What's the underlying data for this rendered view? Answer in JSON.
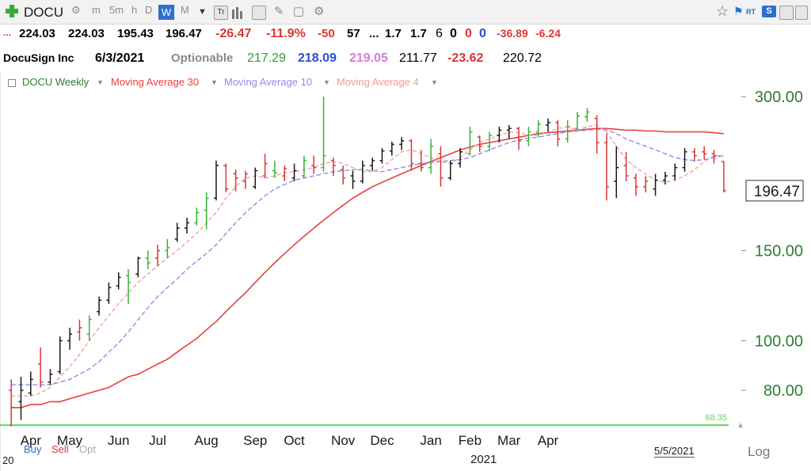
{
  "toolbar": {
    "symbol": "DOCU",
    "intervals": [
      "m",
      "5m",
      "h",
      "D",
      "W",
      "M"
    ],
    "active_interval": "W",
    "rt_label": "RT",
    "s_label": "S"
  },
  "quote": {
    "ellipsis": "...",
    "open": "224.03",
    "high": "224.03",
    "low": "195.43",
    "close": "196.47",
    "change": "-26.47",
    "change_pct": "-11.9%",
    "v1": "-50",
    "v2": "57",
    "v3": "...",
    "v4": "1.7",
    "v5": "1.7",
    "v6": "6",
    "v7": "0",
    "v8": "0",
    "v9": "0",
    "v10": "-36.89",
    "v11": "-6.24"
  },
  "info": {
    "company": "DocuSign Inc",
    "date": "6/3/2021",
    "optionable": "Optionable",
    "p1": "217.29",
    "p2": "218.09",
    "p3": "219.05",
    "p4": "211.77",
    "p5": "-23.62",
    "p6": "220.72"
  },
  "legend": {
    "items": [
      "DOCU Weekly",
      "Moving Average 30",
      "Moving Average 10",
      "Moving Average 4"
    ]
  },
  "footer": {
    "year_stub": "20",
    "buy": "Buy",
    "sell": "Sell",
    "opt": "Opt",
    "year": "2021",
    "marker_date": "5/5/2021",
    "scale": "Log"
  },
  "colors": {
    "up": "#38b238",
    "down": "#d93636",
    "neutral": "#1a1a1a",
    "ma30": "#e8413c",
    "ma10": "#8f8fe8",
    "ma4": "#f29a9a",
    "support": "#5cd65c",
    "axis_text": "#2e7d32"
  },
  "chart_data": {
    "type": "line",
    "title": "DOCU Weekly",
    "scale": "log",
    "ylim": [
      66,
      320
    ],
    "x_tick_labels": [
      "Apr",
      "May",
      "Jun",
      "Jul",
      "Aug",
      "Sep",
      "Oct",
      "Nov",
      "Dec",
      "Jan",
      "Feb",
      "Mar",
      "Apr"
    ],
    "x_tick_positions": [
      2,
      6,
      11,
      15,
      20,
      25,
      29,
      34,
      38,
      43,
      47,
      51,
      55
    ],
    "y_ticks": [
      80,
      100,
      150,
      300
    ],
    "y_tick_labels": [
      "80.00",
      "100.00",
      "150.00",
      "300.00"
    ],
    "current_price": 196.47,
    "current_price_label": "196.47",
    "support_level": 68.35,
    "support_label": "68.35",
    "bars": [
      {
        "o": 80,
        "h": 84,
        "l": 68,
        "c": 74,
        "t": "down"
      },
      {
        "o": 76,
        "h": 85,
        "l": 70,
        "c": 80,
        "t": "flat"
      },
      {
        "o": 79,
        "h": 87,
        "l": 78,
        "c": 84,
        "t": "flat"
      },
      {
        "o": 90,
        "h": 97,
        "l": 81,
        "c": 83,
        "t": "down"
      },
      {
        "o": 83,
        "h": 88,
        "l": 82,
        "c": 86,
        "t": "flat"
      },
      {
        "o": 87,
        "h": 102,
        "l": 86,
        "c": 100,
        "t": "flat"
      },
      {
        "o": 100,
        "h": 106,
        "l": 96,
        "c": 103,
        "t": "flat"
      },
      {
        "o": 104,
        "h": 110,
        "l": 100,
        "c": 106,
        "t": "down"
      },
      {
        "o": 103,
        "h": 112,
        "l": 100,
        "c": 110,
        "t": "up"
      },
      {
        "o": 114,
        "h": 122,
        "l": 112,
        "c": 120,
        "t": "flat"
      },
      {
        "o": 120,
        "h": 130,
        "l": 118,
        "c": 127,
        "t": "flat"
      },
      {
        "o": 128,
        "h": 136,
        "l": 126,
        "c": 133,
        "t": "flat"
      },
      {
        "o": 134,
        "h": 138,
        "l": 118,
        "c": 130,
        "t": "up"
      },
      {
        "o": 135,
        "h": 146,
        "l": 133,
        "c": 145,
        "t": "flat"
      },
      {
        "o": 145,
        "h": 150,
        "l": 138,
        "c": 142,
        "t": "up"
      },
      {
        "o": 145,
        "h": 154,
        "l": 140,
        "c": 150,
        "t": "down"
      },
      {
        "o": 150,
        "h": 158,
        "l": 145,
        "c": 152,
        "t": "up"
      },
      {
        "o": 158,
        "h": 170,
        "l": 156,
        "c": 166,
        "t": "flat"
      },
      {
        "o": 166,
        "h": 174,
        "l": 162,
        "c": 170,
        "t": "flat"
      },
      {
        "o": 170,
        "h": 182,
        "l": 168,
        "c": 178,
        "t": "up"
      },
      {
        "o": 180,
        "h": 195,
        "l": 165,
        "c": 190,
        "t": "up"
      },
      {
        "o": 190,
        "h": 225,
        "l": 188,
        "c": 220,
        "t": "flat"
      },
      {
        "o": 220,
        "h": 222,
        "l": 195,
        "c": 198,
        "t": "down"
      },
      {
        "o": 212,
        "h": 216,
        "l": 196,
        "c": 208,
        "t": "down"
      },
      {
        "o": 205,
        "h": 215,
        "l": 198,
        "c": 212,
        "t": "down"
      },
      {
        "o": 200,
        "h": 218,
        "l": 198,
        "c": 215,
        "t": "flat"
      },
      {
        "o": 210,
        "h": 232,
        "l": 208,
        "c": 222,
        "t": "down"
      },
      {
        "o": 215,
        "h": 225,
        "l": 208,
        "c": 213,
        "t": "up"
      },
      {
        "o": 210,
        "h": 220,
        "l": 205,
        "c": 217,
        "t": "down"
      },
      {
        "o": 208,
        "h": 222,
        "l": 205,
        "c": 215,
        "t": "flat"
      },
      {
        "o": 210,
        "h": 230,
        "l": 208,
        "c": 225,
        "t": "up"
      },
      {
        "o": 220,
        "h": 230,
        "l": 212,
        "c": 218,
        "t": "down"
      },
      {
        "o": 218,
        "h": 300,
        "l": 214,
        "c": 230,
        "t": "up"
      },
      {
        "o": 225,
        "h": 228,
        "l": 210,
        "c": 220,
        "t": "down"
      },
      {
        "o": 216,
        "h": 220,
        "l": 202,
        "c": 208,
        "t": "down"
      },
      {
        "o": 210,
        "h": 215,
        "l": 198,
        "c": 205,
        "t": "flat"
      },
      {
        "o": 205,
        "h": 225,
        "l": 203,
        "c": 220,
        "t": "flat"
      },
      {
        "o": 220,
        "h": 228,
        "l": 215,
        "c": 225,
        "t": "flat"
      },
      {
        "o": 225,
        "h": 238,
        "l": 222,
        "c": 235,
        "t": "flat"
      },
      {
        "o": 235,
        "h": 245,
        "l": 230,
        "c": 242,
        "t": "flat"
      },
      {
        "o": 242,
        "h": 250,
        "l": 236,
        "c": 246,
        "t": "flat"
      },
      {
        "o": 246,
        "h": 248,
        "l": 215,
        "c": 222,
        "t": "down"
      },
      {
        "o": 222,
        "h": 236,
        "l": 214,
        "c": 218,
        "t": "down"
      },
      {
        "o": 218,
        "h": 248,
        "l": 212,
        "c": 240,
        "t": "up"
      },
      {
        "o": 232,
        "h": 240,
        "l": 200,
        "c": 208,
        "t": "down"
      },
      {
        "o": 208,
        "h": 225,
        "l": 206,
        "c": 222,
        "t": "flat"
      },
      {
        "o": 222,
        "h": 238,
        "l": 218,
        "c": 234,
        "t": "flat"
      },
      {
        "o": 232,
        "h": 262,
        "l": 230,
        "c": 256,
        "t": "up"
      },
      {
        "o": 250,
        "h": 252,
        "l": 234,
        "c": 240,
        "t": "down"
      },
      {
        "o": 240,
        "h": 256,
        "l": 235,
        "c": 252,
        "t": "up"
      },
      {
        "o": 252,
        "h": 262,
        "l": 244,
        "c": 258,
        "t": "flat"
      },
      {
        "o": 258,
        "h": 264,
        "l": 248,
        "c": 260,
        "t": "flat"
      },
      {
        "o": 260,
        "h": 262,
        "l": 236,
        "c": 246,
        "t": "down"
      },
      {
        "o": 246,
        "h": 262,
        "l": 240,
        "c": 256,
        "t": "up"
      },
      {
        "o": 256,
        "h": 270,
        "l": 250,
        "c": 265,
        "t": "up"
      },
      {
        "o": 264,
        "h": 272,
        "l": 256,
        "c": 267,
        "t": "flat"
      },
      {
        "o": 267,
        "h": 270,
        "l": 240,
        "c": 248,
        "t": "down"
      },
      {
        "o": 248,
        "h": 270,
        "l": 244,
        "c": 262,
        "t": "up"
      },
      {
        "o": 260,
        "h": 280,
        "l": 258,
        "c": 275,
        "t": "up"
      },
      {
        "o": 274,
        "h": 285,
        "l": 268,
        "c": 280,
        "t": "up"
      },
      {
        "o": 272,
        "h": 276,
        "l": 232,
        "c": 244,
        "t": "down"
      },
      {
        "o": 244,
        "h": 254,
        "l": 188,
        "c": 200,
        "t": "down"
      },
      {
        "o": 205,
        "h": 240,
        "l": 190,
        "c": 218,
        "t": "flat"
      },
      {
        "o": 220,
        "h": 234,
        "l": 205,
        "c": 210,
        "t": "down"
      },
      {
        "o": 208,
        "h": 212,
        "l": 192,
        "c": 200,
        "t": "down"
      },
      {
        "o": 200,
        "h": 210,
        "l": 195,
        "c": 205,
        "t": "down"
      },
      {
        "o": 198,
        "h": 212,
        "l": 192,
        "c": 206,
        "t": "flat"
      },
      {
        "o": 206,
        "h": 214,
        "l": 202,
        "c": 210,
        "t": "flat"
      },
      {
        "o": 210,
        "h": 222,
        "l": 206,
        "c": 218,
        "t": "flat"
      },
      {
        "o": 218,
        "h": 238,
        "l": 214,
        "c": 234,
        "t": "flat"
      },
      {
        "o": 234,
        "h": 238,
        "l": 224,
        "c": 230,
        "t": "down"
      },
      {
        "o": 234,
        "h": 240,
        "l": 226,
        "c": 232,
        "t": "down"
      },
      {
        "o": 232,
        "h": 236,
        "l": 222,
        "c": 230,
        "t": "down"
      },
      {
        "o": 224,
        "h": 224,
        "l": 195,
        "c": 196.47,
        "t": "down"
      }
    ],
    "ma4": [
      78,
      78,
      78,
      79,
      81,
      85,
      89,
      94,
      100,
      106,
      112,
      118,
      124,
      130,
      135,
      140,
      145,
      150,
      156,
      162,
      170,
      178,
      190,
      200,
      208,
      210,
      208,
      210,
      213,
      214,
      216,
      218,
      222,
      224,
      222,
      218,
      214,
      214,
      218,
      226,
      234,
      236,
      232,
      228,
      224,
      222,
      228,
      236,
      244,
      248,
      252,
      256,
      255,
      252,
      252,
      256,
      260,
      262,
      258,
      262,
      264,
      256,
      240,
      226,
      218,
      212,
      206,
      204,
      206,
      210,
      216,
      224,
      230,
      230
    ],
    "ma10": [
      82,
      82,
      82,
      82,
      82,
      83,
      84,
      86,
      88,
      91,
      95,
      99,
      104,
      110,
      116,
      122,
      127,
      132,
      138,
      143,
      148,
      154,
      162,
      170,
      178,
      185,
      192,
      198,
      202,
      206,
      208,
      210,
      212,
      214,
      215,
      216,
      216,
      215,
      214,
      216,
      218,
      220,
      222,
      223,
      224,
      225,
      226,
      228,
      232,
      236,
      240,
      244,
      247,
      249,
      250,
      252,
      254,
      256,
      257,
      258,
      259,
      258,
      254,
      248,
      244,
      240,
      236,
      232,
      228,
      226,
      225,
      226,
      228,
      230
    ],
    "ma30": [
      74,
      74,
      75,
      75,
      76,
      76,
      77,
      78,
      79,
      80,
      81,
      83,
      85,
      86,
      88,
      90,
      92,
      95,
      98,
      101,
      105,
      109,
      114,
      119,
      124,
      130,
      136,
      142,
      148,
      154,
      160,
      166,
      172,
      178,
      184,
      190,
      195,
      200,
      204,
      208,
      212,
      216,
      220,
      224,
      228,
      232,
      236,
      239,
      242,
      244,
      246,
      248,
      250,
      252,
      254,
      255,
      256,
      257,
      258,
      259,
      260,
      260,
      259,
      258,
      258,
      257,
      257,
      256,
      256,
      256,
      256,
      256,
      255,
      254
    ]
  }
}
